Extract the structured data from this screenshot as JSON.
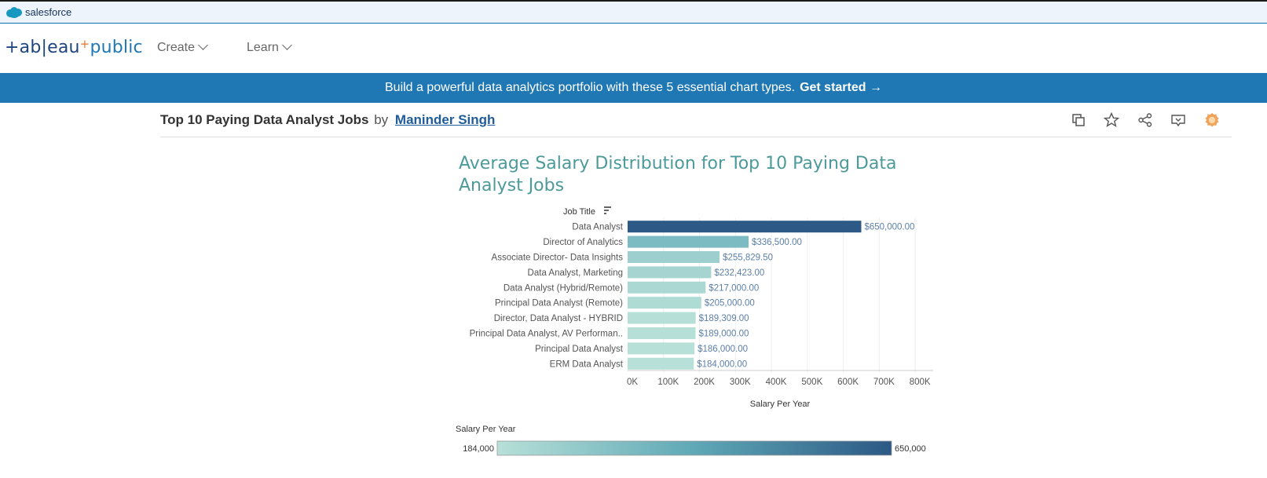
{
  "salesforce": {
    "label": "salesforce",
    "icon": "salesforce-cloud-icon"
  },
  "nav": {
    "logo_main": "+ab|eau",
    "logo_plus": "+",
    "logo_pub": "public",
    "items": [
      {
        "label": "Create"
      },
      {
        "label": "Learn"
      }
    ]
  },
  "banner": {
    "text": "Build a powerful data analytics portfolio with these 5 essential chart types.",
    "cta": "Get started →"
  },
  "viz": {
    "title": "Top 10 Paying Data Analyst Jobs",
    "by": "by",
    "author": "Maninder Singh",
    "actions": [
      "copy-icon",
      "star-icon",
      "share-icon",
      "download-icon",
      "badge-icon"
    ]
  },
  "chart_data": {
    "type": "bar",
    "orientation": "horizontal",
    "title": "Average Salary Distribution for Top 10 Paying Data Analyst Jobs",
    "category_label": "Job Title",
    "xlabel": "Salary Per Year",
    "xlim": [
      0,
      850000
    ],
    "ticks": [
      "0K",
      "100K",
      "200K",
      "300K",
      "400K",
      "500K",
      "600K",
      "700K",
      "800K"
    ],
    "tick_values": [
      0,
      100000,
      200000,
      300000,
      400000,
      500000,
      600000,
      700000,
      800000
    ],
    "categories": [
      "Data Analyst",
      "Director of Analytics",
      "Associate Director- Data Insights",
      "Data Analyst, Marketing",
      "Data Analyst (Hybrid/Remote)",
      "Principal Data Analyst (Remote)",
      "Director, Data Analyst - HYBRID",
      "Principal Data Analyst, AV Performan..",
      "Principal Data Analyst",
      "ERM Data Analyst"
    ],
    "values": [
      650000,
      336500,
      255829.5,
      232423,
      217000,
      205000,
      189309,
      189000,
      186000,
      184000
    ],
    "value_labels": [
      "$650,000.00",
      "$336,500.00",
      "$255,829.50",
      "$232,423.00",
      "$217,000.00",
      "$205,000.00",
      "$189,309.00",
      "$189,000.00",
      "$186,000.00",
      "$184,000.00"
    ],
    "grid": true,
    "color_scale": {
      "min_color": "#b7e0d8",
      "max_color": "#2c5985"
    },
    "legend": {
      "title": "Salary Per Year",
      "min_label": "184,000",
      "max_label": "650,000",
      "min": 184000,
      "max": 650000
    }
  }
}
